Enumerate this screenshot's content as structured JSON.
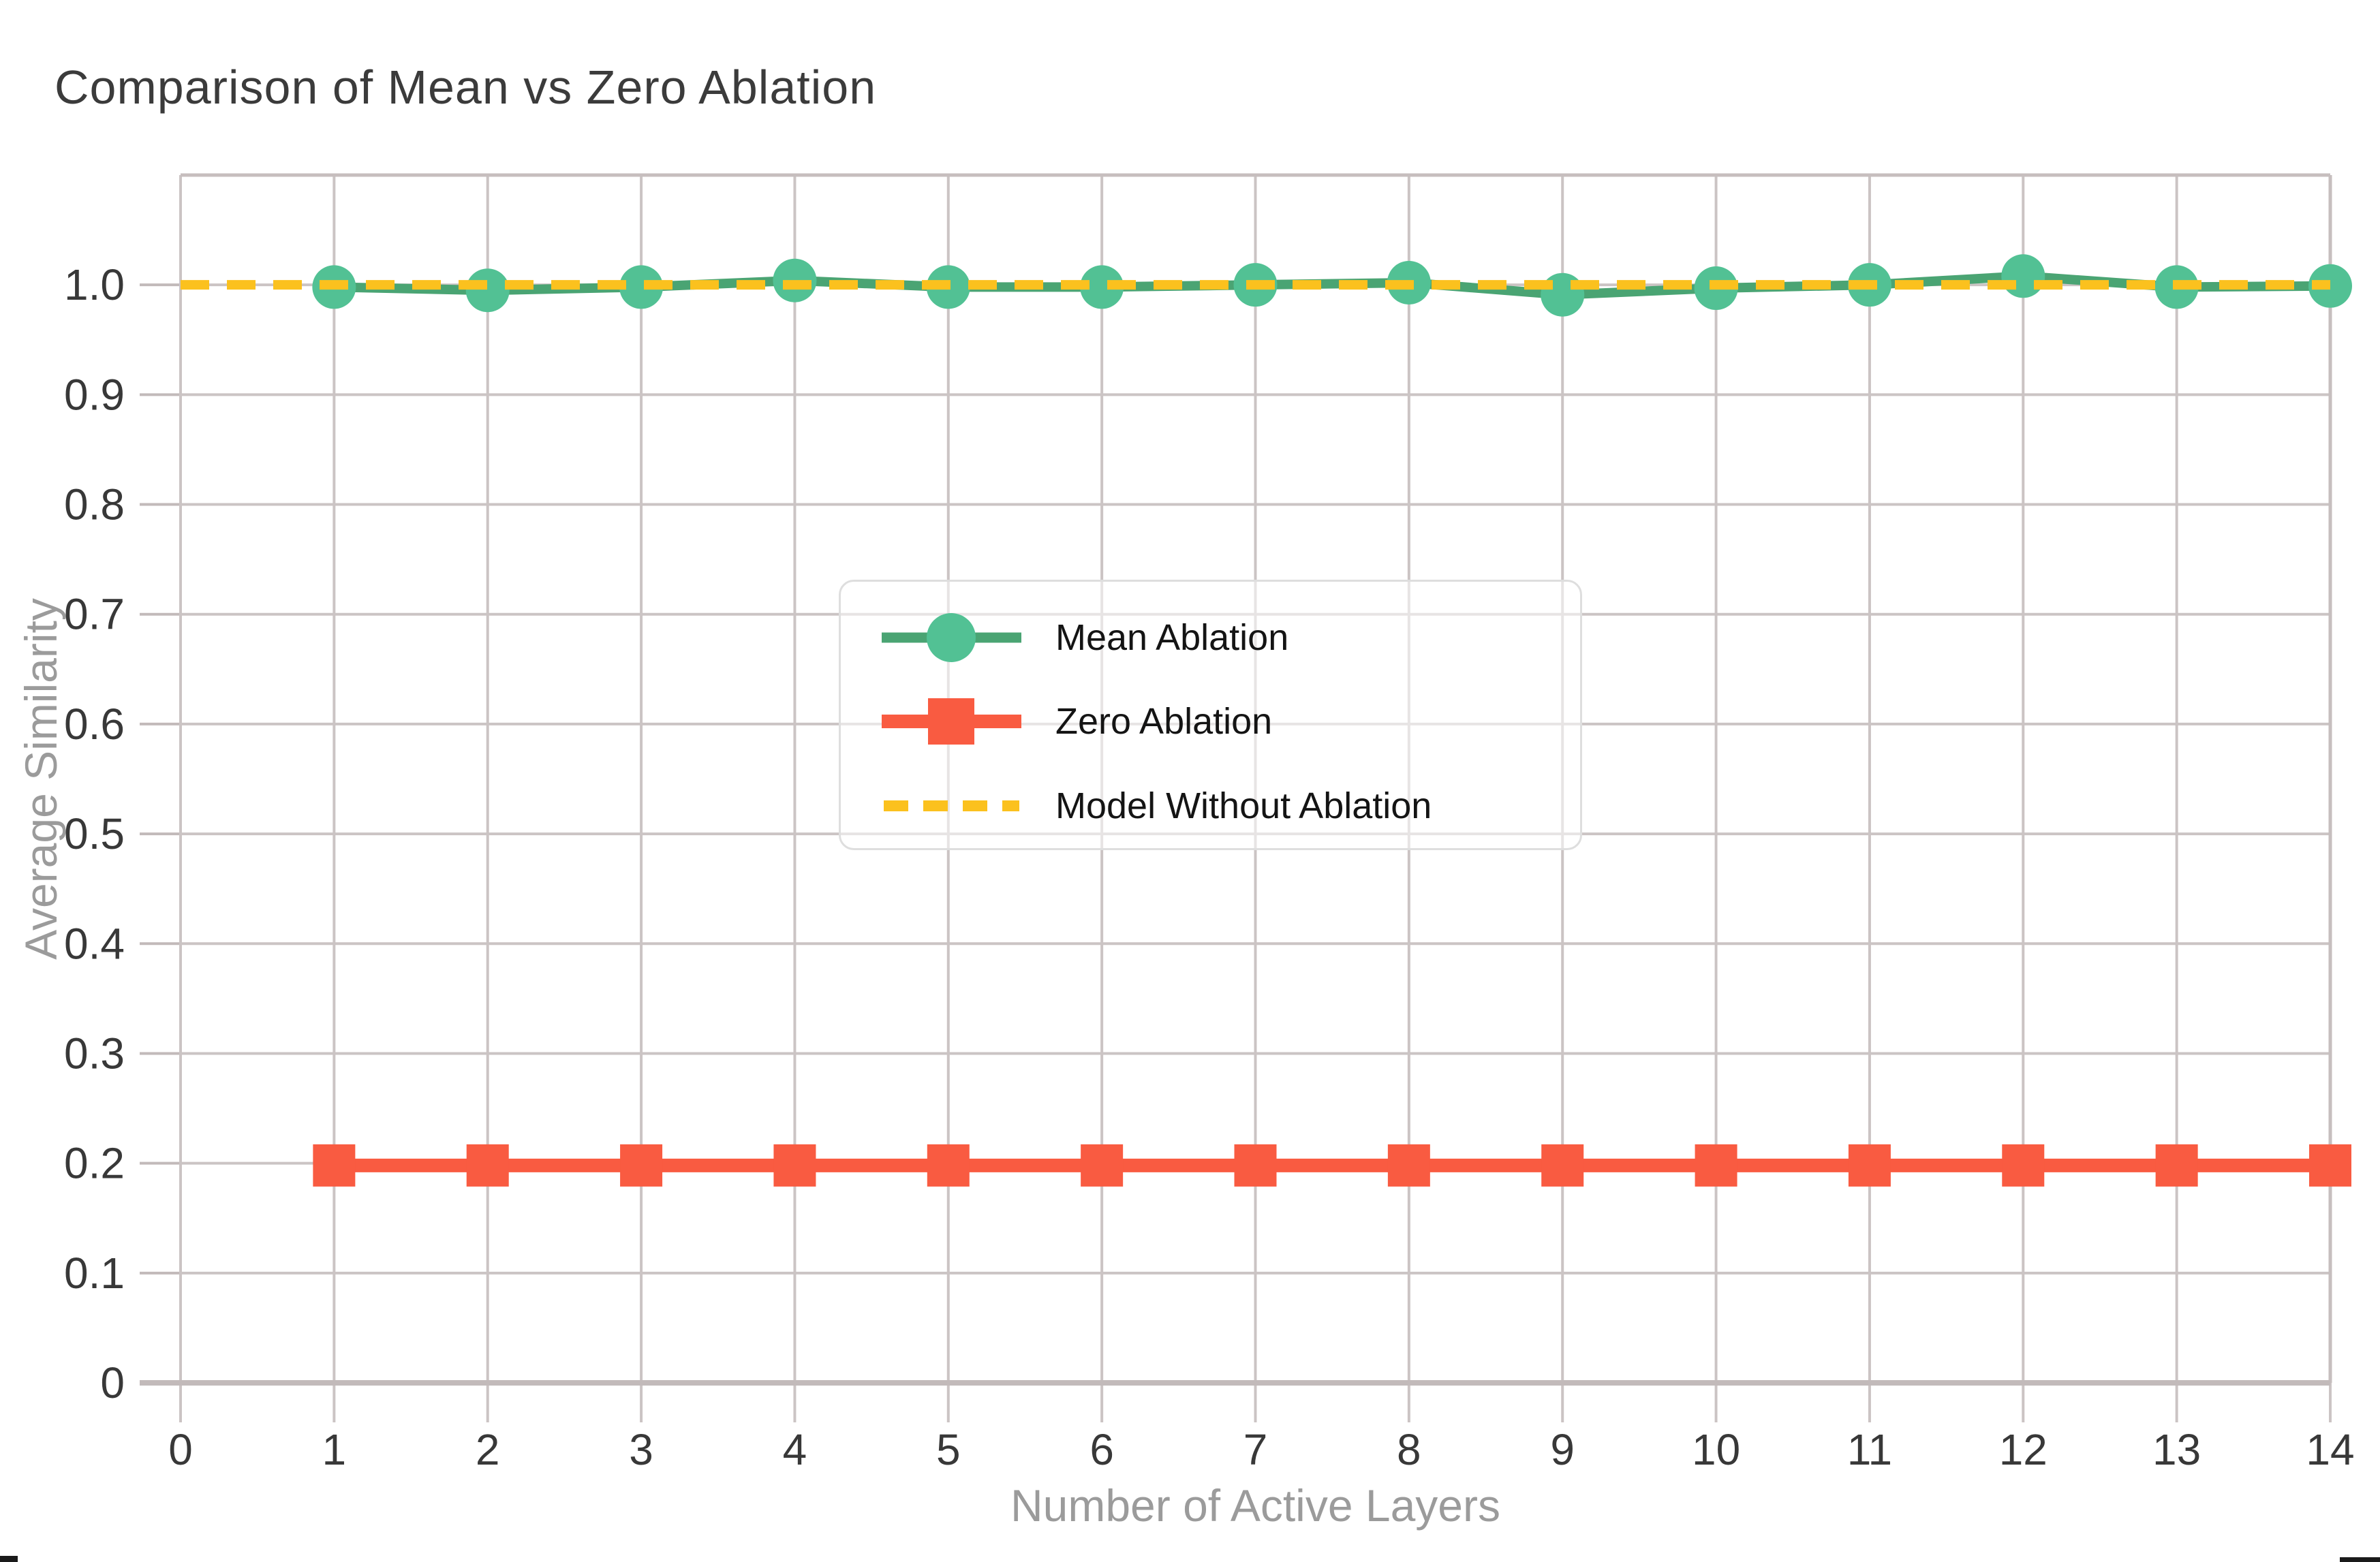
{
  "page": {
    "title": "Comparison of Mean vs Zero Ablation"
  },
  "legend": {
    "items": [
      {
        "label": "Mean Ablation"
      },
      {
        "label": "Zero Ablation"
      },
      {
        "label": "Model Without Ablation"
      }
    ]
  },
  "colors": {
    "grid": "#cbc4c4",
    "axis_line": "#c2baba",
    "frame": "#c6bebe",
    "tick_text": "#383838",
    "axis_title_text": "#9b9b9b",
    "title_text": "#3b3b3b",
    "legend_border": "#dedede",
    "mean_ablation_marker": "#52c194",
    "mean_ablation_line": "#4aa473",
    "zero_ablation": "#f95b41",
    "model_without_ablation": "#fbc11e"
  },
  "chart_data": {
    "type": "line",
    "title": "Comparison of Mean vs Zero Ablation",
    "xlabel": "Number of Active Layers",
    "ylabel": "Average Similarity",
    "xlim": [
      0,
      14
    ],
    "ylim": [
      0,
      1.1
    ],
    "xticks": [
      0,
      1,
      2,
      3,
      4,
      5,
      6,
      7,
      8,
      9,
      10,
      11,
      12,
      13,
      14
    ],
    "xtick_labels": [
      "0",
      "1",
      "2",
      "3",
      "4",
      "5",
      "6",
      "7",
      "8",
      "9",
      "10",
      "11",
      "12",
      "13",
      "14"
    ],
    "yticks": [
      0,
      0.1,
      0.2,
      0.3,
      0.4,
      0.5,
      0.6,
      0.7,
      0.8,
      0.9,
      1.0
    ],
    "ytick_labels": [
      "0",
      "0.1",
      "0.2",
      "0.3",
      "0.4",
      "0.5",
      "0.6",
      "0.7",
      "0.8",
      "0.9",
      "1.0"
    ],
    "grid": true,
    "legend_position": "center",
    "series": [
      {
        "name": "Mean Ablation",
        "mode": "line+markers",
        "marker": "circle",
        "line_color": "#4aa473",
        "marker_color": "#52c194",
        "x": [
          1,
          2,
          3,
          4,
          5,
          6,
          7,
          8,
          9,
          10,
          11,
          12,
          13,
          14
        ],
        "y": [
          0.998,
          0.995,
          0.998,
          1.004,
          0.998,
          0.998,
          1.0,
          1.002,
          0.991,
          0.997,
          1.0,
          1.008,
          0.998,
          0.999
        ]
      },
      {
        "name": "Zero Ablation",
        "mode": "line+markers",
        "marker": "square",
        "line_color": "#f95b41",
        "marker_color": "#f95b41",
        "x": [
          1,
          2,
          3,
          4,
          5,
          6,
          7,
          8,
          9,
          10,
          11,
          12,
          13,
          14
        ],
        "y": [
          0.198,
          0.198,
          0.198,
          0.198,
          0.198,
          0.198,
          0.198,
          0.198,
          0.198,
          0.198,
          0.198,
          0.198,
          0.198,
          0.198
        ]
      },
      {
        "name": "Model Without Ablation",
        "mode": "dashed-line",
        "marker": "none",
        "line_color": "#fbc11e",
        "x": [
          0,
          14
        ],
        "y": [
          1.0,
          1.0
        ]
      }
    ]
  }
}
